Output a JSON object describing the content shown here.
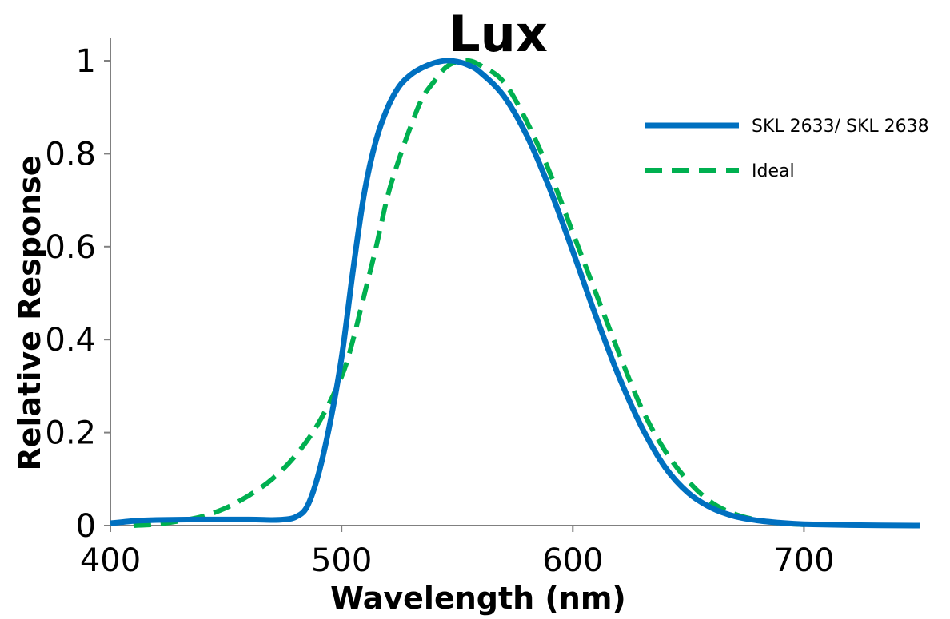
{
  "chart_data": {
    "type": "line",
    "title": "Lux",
    "xlabel": "Wavelength (nm)",
    "ylabel": "Relative Response",
    "xlim": [
      400,
      750
    ],
    "ylim": [
      0,
      1
    ],
    "x_ticks": [
      400,
      500,
      600,
      700
    ],
    "x_tick_labels": [
      "400",
      "500",
      "600",
      "700"
    ],
    "y_ticks": [
      0,
      0.2,
      0.4,
      0.6,
      0.8,
      1
    ],
    "y_tick_labels": [
      "0",
      "0.2",
      "0.4",
      "0.6",
      "0.8",
      "1"
    ],
    "grid": false,
    "legend_position": "top-right",
    "series": [
      {
        "name": "SKL 2633/ SKL 2638",
        "color": "#0070C0",
        "style": "solid",
        "x": [
          400,
          410,
          420,
          440,
          460,
          470,
          475,
          480,
          485,
          490,
          495,
          500,
          505,
          510,
          515,
          520,
          525,
          530,
          535,
          540,
          545,
          550,
          555,
          560,
          570,
          580,
          590,
          600,
          610,
          620,
          630,
          640,
          650,
          660,
          670,
          680,
          690,
          700,
          720,
          750
        ],
        "y": [
          0.005,
          0.01,
          0.012,
          0.013,
          0.013,
          0.012,
          0.013,
          0.018,
          0.04,
          0.11,
          0.22,
          0.36,
          0.55,
          0.72,
          0.83,
          0.9,
          0.945,
          0.97,
          0.985,
          0.995,
          1.0,
          0.998,
          0.99,
          0.975,
          0.925,
          0.84,
          0.725,
          0.59,
          0.45,
          0.32,
          0.21,
          0.125,
          0.07,
          0.038,
          0.02,
          0.011,
          0.006,
          0.003,
          0.001,
          0.0
        ]
      },
      {
        "name": "Ideal",
        "color": "#00B050",
        "style": "dashed",
        "x": [
          410,
          420,
          430,
          440,
          450,
          460,
          470,
          480,
          490,
          500,
          505,
          510,
          515,
          520,
          525,
          530,
          535,
          540,
          545,
          550,
          555,
          560,
          570,
          580,
          590,
          600,
          610,
          620,
          630,
          640,
          650,
          660,
          670,
          680,
          690,
          700
        ],
        "y": [
          0.0,
          0.003,
          0.01,
          0.02,
          0.038,
          0.065,
          0.1,
          0.15,
          0.22,
          0.32,
          0.4,
          0.5,
          0.6,
          0.71,
          0.79,
          0.86,
          0.92,
          0.955,
          0.985,
          0.998,
          1.0,
          0.99,
          0.955,
          0.87,
          0.76,
          0.63,
          0.5,
          0.37,
          0.25,
          0.16,
          0.095,
          0.05,
          0.025,
          0.012,
          0.005,
          0.002
        ]
      }
    ]
  }
}
